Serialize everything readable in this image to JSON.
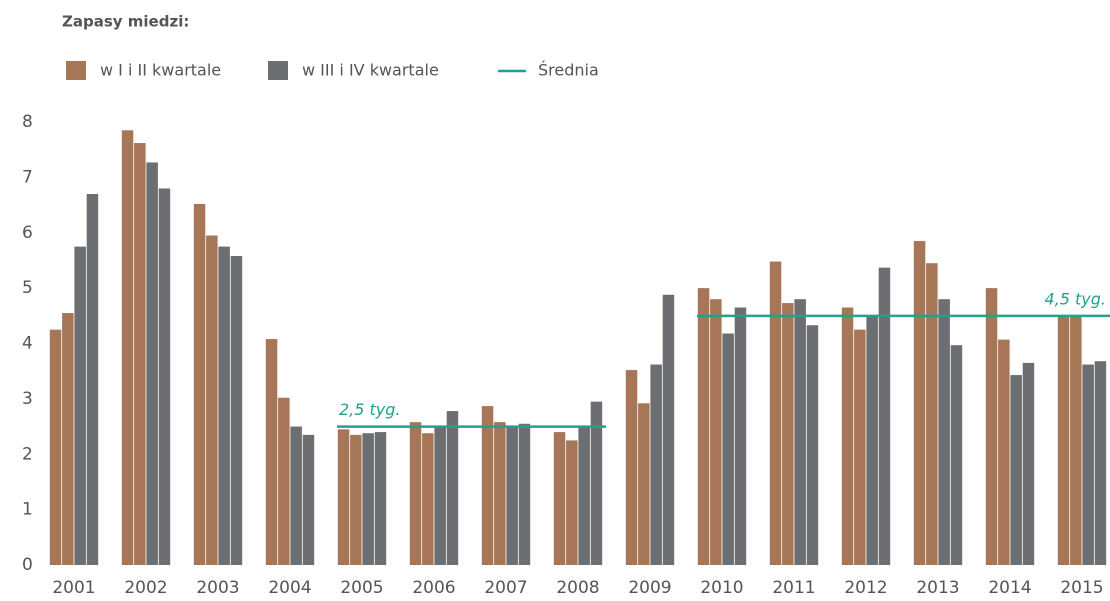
{
  "chart_data": {
    "type": "grouped-bar",
    "title": "Zapasy miedzi:",
    "categories": [
      "2001",
      "2002",
      "2003",
      "2004",
      "2005",
      "2006",
      "2007",
      "2008",
      "2009",
      "2010",
      "2011",
      "2012",
      "2013",
      "2014",
      "2015"
    ],
    "series": [
      {
        "name": "w I i II kwartale",
        "color": "#a67656",
        "values": [
          [
            4.25,
            4.55
          ],
          [
            7.85,
            7.62
          ],
          [
            6.52,
            5.95
          ],
          [
            4.08,
            3.02
          ],
          [
            2.45,
            2.35
          ],
          [
            2.58,
            2.38
          ],
          [
            2.87,
            2.58
          ],
          [
            2.4,
            2.25
          ],
          [
            3.52,
            2.92
          ],
          [
            5.0,
            4.8
          ],
          [
            5.48,
            4.73
          ],
          [
            4.65,
            4.25
          ],
          [
            5.85,
            5.45
          ],
          [
            5.0,
            4.07
          ],
          [
            4.5,
            4.5
          ]
        ]
      },
      {
        "name": "w III i IV kwartale",
        "color": "#6d6e71",
        "values": [
          [
            5.75,
            6.7
          ],
          [
            7.27,
            6.8
          ],
          [
            5.75,
            5.58
          ],
          [
            2.5,
            2.35
          ],
          [
            2.38,
            2.4
          ],
          [
            2.5,
            2.78
          ],
          [
            2.5,
            2.55
          ],
          [
            2.5,
            2.95
          ],
          [
            3.62,
            4.88
          ],
          [
            4.18,
            4.65
          ],
          [
            4.8,
            4.33
          ],
          [
            4.5,
            5.37
          ],
          [
            4.8,
            3.97
          ],
          [
            3.43,
            3.65
          ],
          [
            3.62,
            3.68
          ]
        ]
      }
    ],
    "average": {
      "name": "Średnia",
      "color": "#1ea38d",
      "lines": [
        {
          "label": "2,5 tyg.",
          "value": 2.5,
          "from": "2005",
          "to": "2008"
        },
        {
          "label": "4,5 tyg.",
          "value": 4.5,
          "from": "2010",
          "to": "2015"
        }
      ]
    },
    "ylim": [
      0,
      8
    ],
    "yticks": [
      0,
      1,
      2,
      3,
      4,
      5,
      6,
      7,
      8
    ]
  }
}
